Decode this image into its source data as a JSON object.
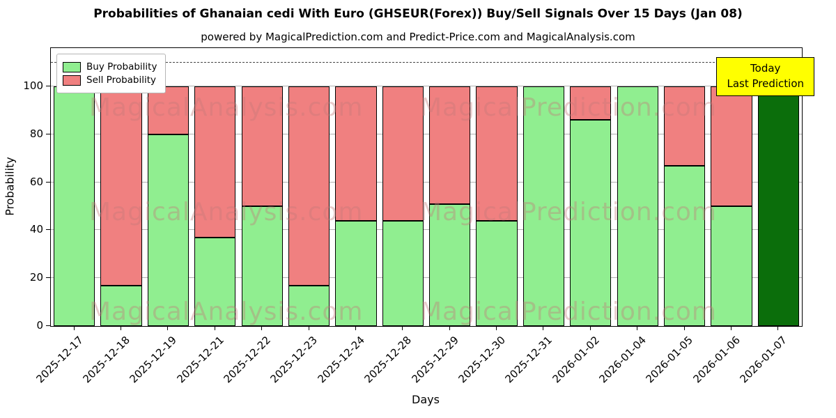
{
  "title": "Probabilities of Ghanaian cedi With Euro (GHSEUR(Forex)) Buy/Sell Signals Over 15 Days (Jan 08)",
  "subtitle": "powered by MagicalPrediction.com and Predict-Price.com and MagicalAnalysis.com",
  "legend": {
    "buy_label": "Buy Probability",
    "sell_label": "Sell Probability"
  },
  "annotation": {
    "line1": "Today",
    "line2": "Last Prediction"
  },
  "axes": {
    "x_label": "Days",
    "y_label": "Probability",
    "y_ticks": [
      0,
      20,
      40,
      60,
      80,
      100
    ]
  },
  "colors": {
    "buy": "#90ee90",
    "sell": "#f08080",
    "today_bar": "#0b6e0b",
    "annotation_bg": "#ffff00",
    "gridline": "#b0b0b0"
  },
  "watermarks": [
    "MagicalAnalysis.com",
    "MagicalPrediction.com"
  ],
  "chart_data": {
    "type": "bar",
    "stacked": true,
    "title": "Probabilities of Ghanaian cedi With Euro (GHSEUR(Forex)) Buy/Sell Signals Over 15 Days (Jan 08)",
    "xlabel": "Days",
    "ylabel": "Probability",
    "ylim": [
      0,
      116
    ],
    "grid": true,
    "legend_position": "upper-left",
    "dashed_line_y": 110,
    "today_index": 15,
    "categories": [
      "2025-12-17",
      "2025-12-18",
      "2025-12-19",
      "2025-12-21",
      "2025-12-22",
      "2025-12-23",
      "2025-12-24",
      "2025-12-28",
      "2025-12-29",
      "2025-12-30",
      "2025-12-31",
      "2026-01-02",
      "2026-01-04",
      "2026-01-05",
      "2026-01-06",
      "2026-01-07"
    ],
    "series": [
      {
        "name": "Buy Probability",
        "values": [
          100,
          17,
          80,
          37,
          50,
          17,
          44,
          44,
          51,
          44,
          100,
          86,
          100,
          67,
          50,
          100
        ]
      },
      {
        "name": "Sell Probability",
        "values": [
          0,
          83,
          20,
          63,
          50,
          83,
          56,
          56,
          49,
          56,
          0,
          14,
          0,
          33,
          50,
          0
        ]
      }
    ]
  }
}
